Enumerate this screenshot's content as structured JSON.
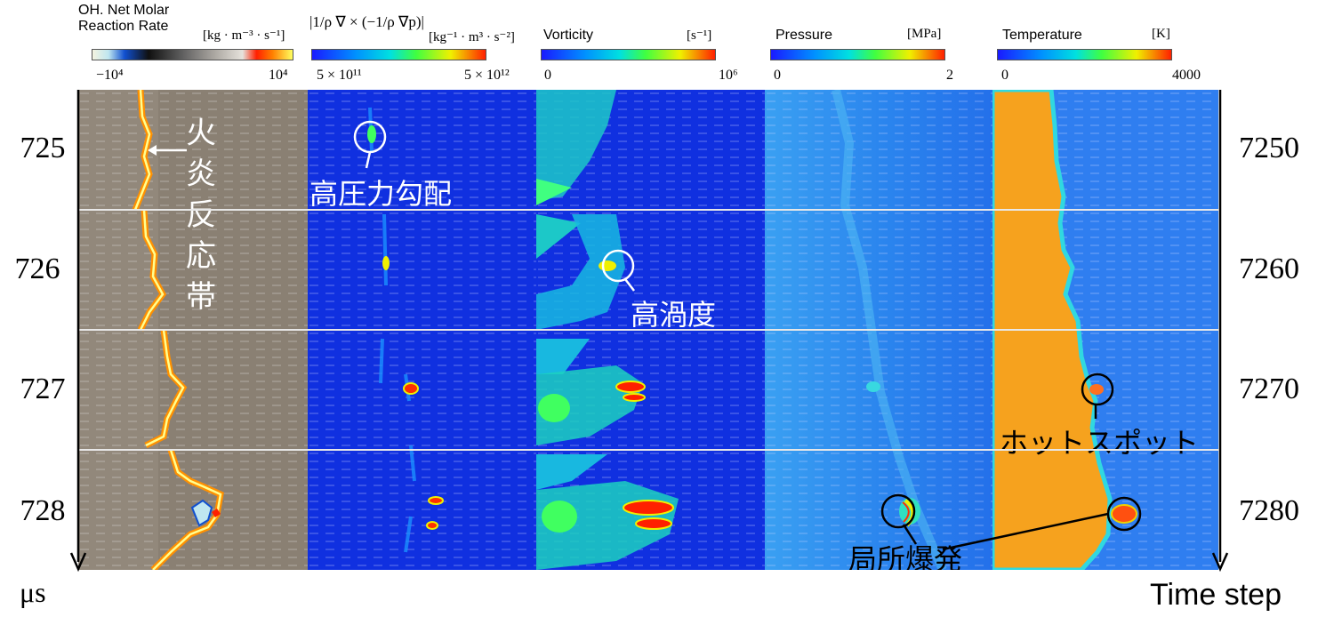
{
  "colorbars": [
    {
      "title": "OH. Net Molar\nReaction Rate",
      "unit": "[kg · m⁻³ · s⁻¹]",
      "min": "−10⁴",
      "max": "10⁴"
    },
    {
      "title": "|1/ρ ∇ × (−1/ρ ∇p)|",
      "unit": "[kg⁻¹ · m³ · s⁻²]",
      "min": "5 × 10¹¹",
      "max": "5 × 10¹²"
    },
    {
      "title": "Vorticity",
      "unit": "[s⁻¹]",
      "min": "0",
      "max": "10⁶"
    },
    {
      "title": "Pressure",
      "unit": "[MPa]",
      "min": "0",
      "max": "2"
    },
    {
      "title": "Temperature",
      "unit": "[K]",
      "min": "0",
      "max": "4000"
    }
  ],
  "time_us": [
    "725",
    "726",
    "727",
    "728"
  ],
  "time_steps": [
    "7250",
    "7260",
    "7270",
    "7280"
  ],
  "axis": {
    "left_unit": "μs",
    "right_label": "Time step"
  },
  "annotations": {
    "flame_zone": "火炎反応帯",
    "high_pressure_gradient": "高圧力勾配",
    "high_vorticity": "高渦度",
    "hot_spot": "ホットスポット",
    "local_explosion": "局所爆発"
  },
  "colors": {
    "field_blue": "#1030e0",
    "flame_bg": "#857a6e",
    "temp_orange": "#f6a21e",
    "pressure_blue": "#2f8ef0"
  }
}
